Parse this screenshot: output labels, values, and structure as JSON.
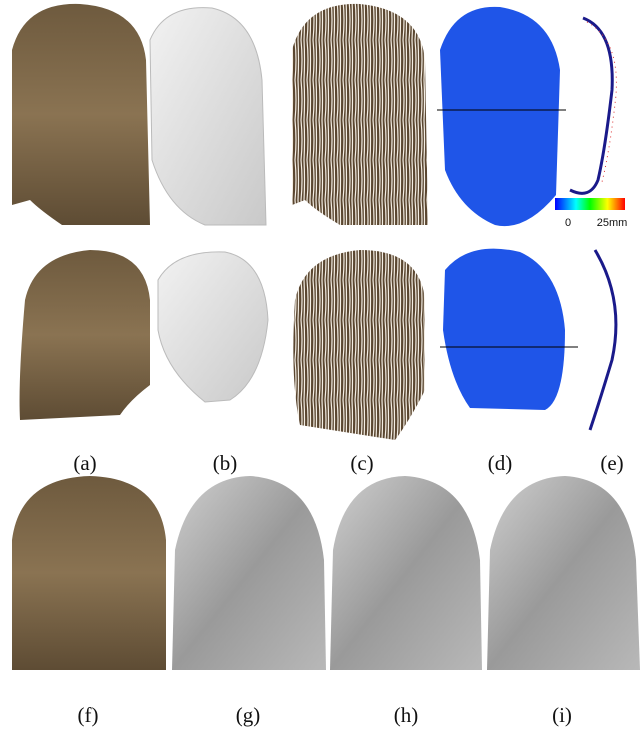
{
  "figure": {
    "labels": [
      "(a)",
      "(b)",
      "(c)",
      "(d)",
      "(e)",
      "(f)",
      "(g)",
      "(h)",
      "(i)"
    ],
    "colorbar": {
      "min_label": "0",
      "max_label": "25mm"
    }
  }
}
